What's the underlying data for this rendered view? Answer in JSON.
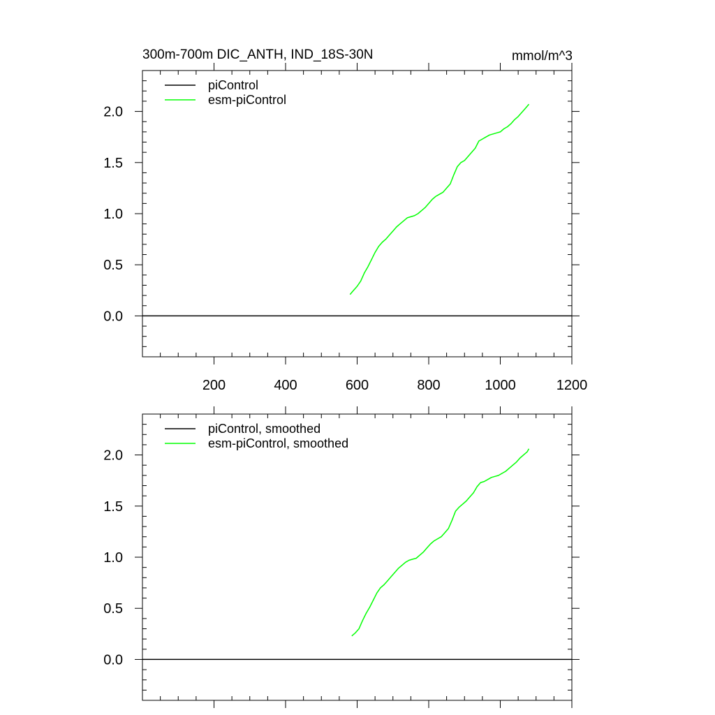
{
  "figure": {
    "title_left": "300m-700m DIC_ANTH, IND_18S-30N",
    "title_right": "mmol/m^3"
  },
  "colors": {
    "piControl": "#000000",
    "esm_piControl": "#00ff00",
    "axes": "#000000"
  },
  "chart_data": [
    {
      "type": "line",
      "title": "300m-700m DIC_ANTH, IND_18S-30N",
      "units": "mmol/m^3",
      "xlim": [
        0,
        1200
      ],
      "ylim": [
        -0.4,
        2.4
      ],
      "x_ticks": [
        200,
        400,
        600,
        800,
        1000,
        1200
      ],
      "x_tick_labels": [
        "200",
        "400",
        "600",
        "800",
        "1000",
        "1200"
      ],
      "y_ticks": [
        0.0,
        0.5,
        1.0,
        1.5,
        2.0
      ],
      "y_tick_labels": [
        "0.0",
        "0.5",
        "1.0",
        "1.5",
        "2.0"
      ],
      "legend_position": "top-left",
      "grid": false,
      "series": [
        {
          "name": "piControl",
          "color": "#000000",
          "points": [
            [
              0,
              0.0
            ],
            [
              1200,
              0.0
            ]
          ]
        },
        {
          "name": "esm-piControl",
          "color": "#00ff00",
          "points": [
            [
              580,
              0.21
            ],
            [
              590,
              0.25
            ],
            [
              600,
              0.29
            ],
            [
              610,
              0.34
            ],
            [
              620,
              0.42
            ],
            [
              630,
              0.48
            ],
            [
              640,
              0.55
            ],
            [
              650,
              0.62
            ],
            [
              660,
              0.68
            ],
            [
              670,
              0.72
            ],
            [
              680,
              0.75
            ],
            [
              690,
              0.79
            ],
            [
              700,
              0.83
            ],
            [
              710,
              0.87
            ],
            [
              720,
              0.9
            ],
            [
              730,
              0.93
            ],
            [
              740,
              0.96
            ],
            [
              750,
              0.97
            ],
            [
              760,
              0.98
            ],
            [
              770,
              1.0
            ],
            [
              780,
              1.03
            ],
            [
              790,
              1.06
            ],
            [
              800,
              1.1
            ],
            [
              810,
              1.14
            ],
            [
              820,
              1.17
            ],
            [
              830,
              1.19
            ],
            [
              840,
              1.21
            ],
            [
              850,
              1.25
            ],
            [
              860,
              1.29
            ],
            [
              870,
              1.38
            ],
            [
              880,
              1.46
            ],
            [
              890,
              1.5
            ],
            [
              900,
              1.52
            ],
            [
              910,
              1.56
            ],
            [
              920,
              1.6
            ],
            [
              930,
              1.64
            ],
            [
              940,
              1.71
            ],
            [
              950,
              1.73
            ],
            [
              960,
              1.75
            ],
            [
              970,
              1.77
            ],
            [
              980,
              1.78
            ],
            [
              990,
              1.79
            ],
            [
              1000,
              1.8
            ],
            [
              1010,
              1.83
            ],
            [
              1020,
              1.85
            ],
            [
              1030,
              1.88
            ],
            [
              1040,
              1.92
            ],
            [
              1050,
              1.95
            ],
            [
              1060,
              1.99
            ],
            [
              1070,
              2.03
            ],
            [
              1080,
              2.07
            ]
          ]
        }
      ]
    },
    {
      "type": "line",
      "xlim": [
        0,
        1200
      ],
      "ylim": [
        -0.4,
        2.4
      ],
      "x_ticks": [
        200,
        400,
        600,
        800,
        1000,
        1200
      ],
      "x_tick_labels": [],
      "y_ticks": [
        0.0,
        0.5,
        1.0,
        1.5,
        2.0
      ],
      "y_tick_labels": [
        "0.0",
        "0.5",
        "1.0",
        "1.5",
        "2.0"
      ],
      "legend_position": "top-left",
      "grid": false,
      "series": [
        {
          "name": "piControl, smoothed",
          "color": "#000000",
          "points": [
            [
              0,
              0.0
            ],
            [
              1200,
              0.0
            ]
          ]
        },
        {
          "name": "esm-piControl, smoothed",
          "color": "#00ff00",
          "points": [
            [
              585,
              0.23
            ],
            [
              595,
              0.26
            ],
            [
              605,
              0.3
            ],
            [
              615,
              0.38
            ],
            [
              625,
              0.45
            ],
            [
              635,
              0.51
            ],
            [
              645,
              0.58
            ],
            [
              655,
              0.65
            ],
            [
              665,
              0.7
            ],
            [
              675,
              0.73
            ],
            [
              685,
              0.77
            ],
            [
              695,
              0.81
            ],
            [
              705,
              0.85
            ],
            [
              715,
              0.89
            ],
            [
              725,
              0.92
            ],
            [
              735,
              0.95
            ],
            [
              745,
              0.97
            ],
            [
              755,
              0.98
            ],
            [
              765,
              0.99
            ],
            [
              775,
              1.02
            ],
            [
              785,
              1.05
            ],
            [
              795,
              1.09
            ],
            [
              805,
              1.13
            ],
            [
              815,
              1.16
            ],
            [
              825,
              1.18
            ],
            [
              835,
              1.2
            ],
            [
              845,
              1.24
            ],
            [
              855,
              1.28
            ],
            [
              865,
              1.36
            ],
            [
              875,
              1.45
            ],
            [
              885,
              1.49
            ],
            [
              895,
              1.52
            ],
            [
              905,
              1.55
            ],
            [
              915,
              1.59
            ],
            [
              925,
              1.63
            ],
            [
              935,
              1.69
            ],
            [
              945,
              1.73
            ],
            [
              955,
              1.74
            ],
            [
              965,
              1.76
            ],
            [
              975,
              1.78
            ],
            [
              985,
              1.79
            ],
            [
              995,
              1.8
            ],
            [
              1005,
              1.82
            ],
            [
              1015,
              1.84
            ],
            [
              1025,
              1.87
            ],
            [
              1035,
              1.9
            ],
            [
              1045,
              1.93
            ],
            [
              1055,
              1.97
            ],
            [
              1065,
              2.0
            ],
            [
              1075,
              2.03
            ],
            [
              1080,
              2.06
            ]
          ]
        }
      ]
    }
  ]
}
